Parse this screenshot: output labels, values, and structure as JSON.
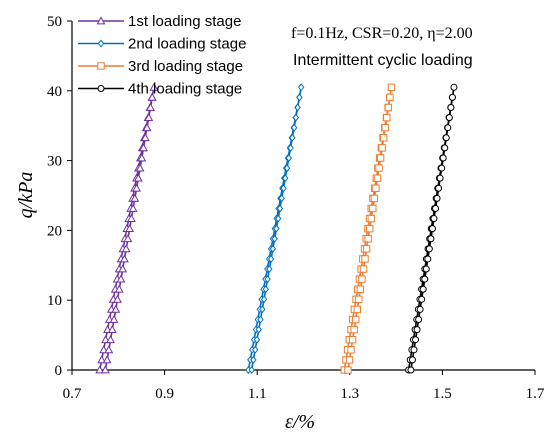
{
  "chart_data": {
    "type": "line",
    "xlabel": "ε/%",
    "ylabel": "q/kPa",
    "xlim": [
      0.7,
      1.7
    ],
    "ylim": [
      0,
      50
    ],
    "xticks": [
      "0.7",
      "0.9",
      "1.1",
      "1.3",
      "1.5",
      "1.7"
    ],
    "yticks": [
      "0",
      "10",
      "20",
      "30",
      "40",
      "50"
    ],
    "grid": false,
    "legend_position": "top-left",
    "annotation_line1": "f=0.1Hz, CSR=0.20, η=2.00",
    "annotation_line2": "Intermittent cyclic loading",
    "series": [
      {
        "name": "1st loading stage",
        "color": "#7030A0",
        "marker": "triangle",
        "loading_path": {
          "x_start": 0.76,
          "x_end": 0.877,
          "q_start": 0,
          "q_end": 40.5
        },
        "unloading_path": {
          "x_start": 0.877,
          "x_end": 0.772,
          "q_start": 40.5,
          "q_end": 0
        }
      },
      {
        "name": "2nd loading stage",
        "color": "#0070C0",
        "marker": "diamond",
        "loading_path": {
          "x_start": 1.081,
          "x_end": 1.195,
          "q_start": 0,
          "q_end": 40.5
        },
        "unloading_path": {
          "x_start": 1.195,
          "x_end": 1.088,
          "q_start": 40.5,
          "q_end": 0
        }
      },
      {
        "name": "3rd loading stage",
        "color": "#ED7D31",
        "marker": "square",
        "loading_path": {
          "x_start": 1.288,
          "x_end": 1.39,
          "q_start": 0,
          "q_end": 40.5
        },
        "unloading_path": {
          "x_start": 1.39,
          "x_end": 1.296,
          "q_start": 40.5,
          "q_end": 0
        }
      },
      {
        "name": "4th loading stage",
        "color": "#000000",
        "marker": "circle",
        "loading_path": {
          "x_start": 1.427,
          "x_end": 1.525,
          "q_start": 0,
          "q_end": 40.5
        },
        "unloading_path": {
          "x_start": 1.525,
          "x_end": 1.432,
          "q_start": 40.5,
          "q_end": 0
        }
      }
    ]
  }
}
